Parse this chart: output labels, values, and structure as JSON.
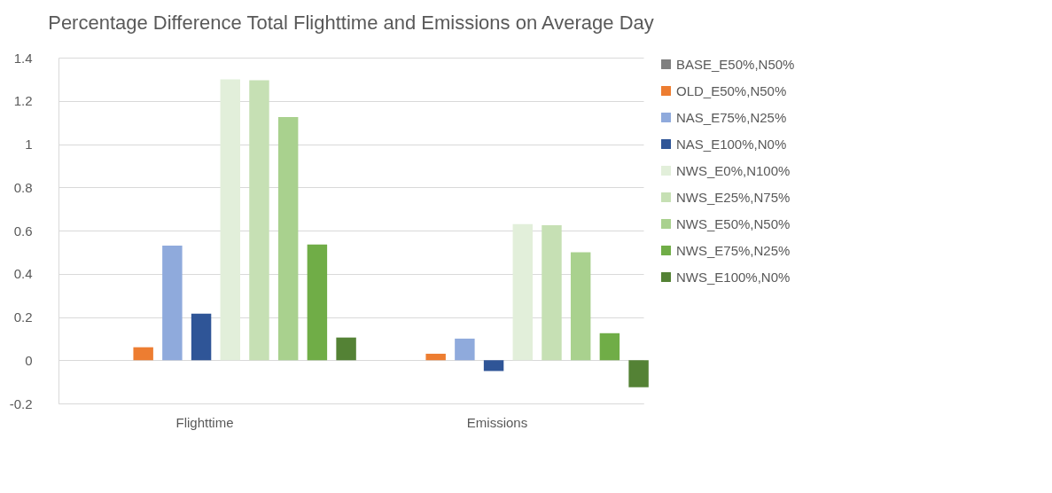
{
  "chart_data": {
    "type": "bar",
    "title": "Percentage Difference Total Flighttime and Emissions on Average Day",
    "categories": [
      "Flighttime",
      "Emissions"
    ],
    "series": [
      {
        "name": "BASE_E50%,N50%",
        "color": "#7f7f7f",
        "values": [
          0,
          0
        ]
      },
      {
        "name": "OLD_E50%,N50%",
        "color": "#ed7d31",
        "values": [
          0.06,
          0.03
        ]
      },
      {
        "name": "NAS_E75%,N25%",
        "color": "#8faadc",
        "values": [
          0.53,
          0.1
        ]
      },
      {
        "name": "NAS_E100%,N0%",
        "color": "#2f5597",
        "values": [
          0.215,
          -0.05
        ]
      },
      {
        "name": "NWS_E0%,N100%",
        "color": "#e2efda",
        "values": [
          1.3,
          0.63
        ]
      },
      {
        "name": "NWS_E25%,N75%",
        "color": "#c6e0b4",
        "values": [
          1.295,
          0.625
        ]
      },
      {
        "name": "NWS_E50%,N50%",
        "color": "#a9d18e",
        "values": [
          1.125,
          0.5
        ]
      },
      {
        "name": "NWS_E75%,N25%",
        "color": "#70ad47",
        "values": [
          0.535,
          0.125
        ]
      },
      {
        "name": "NWS_E100%,N0%",
        "color": "#548235",
        "values": [
          0.105,
          -0.125
        ]
      }
    ],
    "ylim": [
      -0.2,
      1.4
    ],
    "yticks": [
      -0.2,
      0,
      0.2,
      0.4,
      0.6,
      0.8,
      1,
      1.2,
      1.4
    ],
    "grid": "y",
    "legend": "right"
  }
}
